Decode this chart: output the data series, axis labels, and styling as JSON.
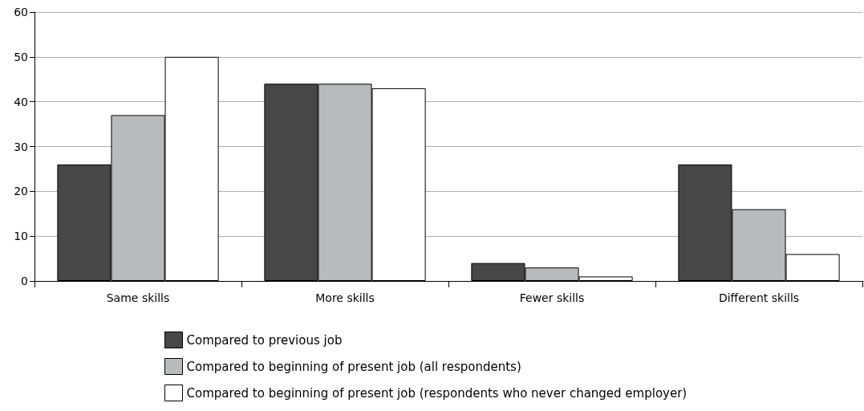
{
  "chart_data": {
    "type": "bar",
    "categories": [
      "Same skills",
      "More skills",
      "Fewer skills",
      "Different skills"
    ],
    "series": [
      {
        "name": "Compared to previous job",
        "color": "#474747",
        "values": [
          26,
          44,
          4,
          26
        ]
      },
      {
        "name": "Compared to beginning of present job (all respondents)",
        "color": "#b9babc",
        "values": [
          37,
          44,
          3,
          16
        ]
      },
      {
        "name": "Compared to beginning of present job (respondents who never changed employer)",
        "color": "#ffffff",
        "values": [
          50,
          43,
          1,
          6
        ]
      }
    ],
    "ylim": [
      0,
      60
    ],
    "yticks": [
      0,
      10,
      20,
      30,
      40,
      50,
      60
    ],
    "grid": "y",
    "legend": "bottom"
  }
}
